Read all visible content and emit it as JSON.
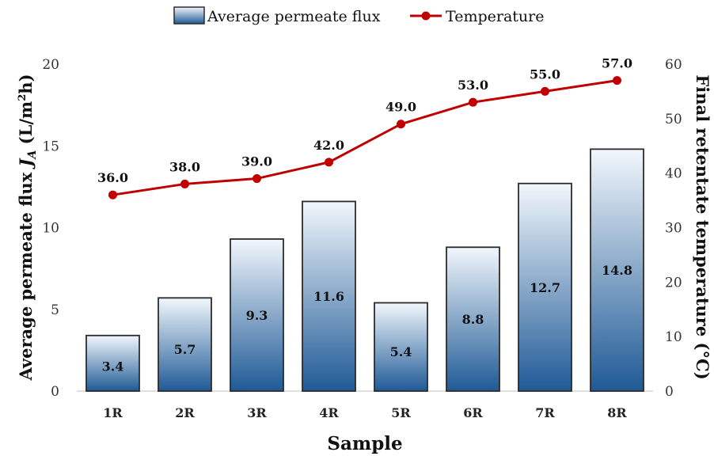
{
  "chart_data": {
    "type": "bar",
    "categories": [
      "1R",
      "2R",
      "3R",
      "4R",
      "5R",
      "6R",
      "7R",
      "8R"
    ],
    "series": [
      {
        "name": "Average permeate flux",
        "type": "bar",
        "axis": "left",
        "values": [
          3.4,
          5.7,
          9.3,
          11.6,
          5.4,
          8.8,
          12.7,
          14.8
        ],
        "data_labels": [
          "3.4",
          "5.7",
          "9.3",
          "11.6",
          "5.4",
          "8.8",
          "12.7",
          "14.8"
        ]
      },
      {
        "name": "Temperature",
        "type": "line",
        "axis": "right",
        "values": [
          36.0,
          38.0,
          39.0,
          42.0,
          49.0,
          53.0,
          55.0,
          57.0
        ],
        "data_labels": [
          "36.0",
          "38.0",
          "39.0",
          "42.0",
          "49.0",
          "53.0",
          "55.0",
          "57.0"
        ]
      }
    ],
    "xlabel": "Sample",
    "ylabel_left": {
      "main": "Average permeate flux ",
      "var": "J",
      "sub": "A",
      "unit_pre": " (L/m",
      "sup": "2",
      "unit_post": "h)"
    },
    "ylabel_right": "Final retentate temperature (°C)",
    "ylim_left": [
      0,
      20
    ],
    "yticks_left": [
      0,
      5,
      10,
      15,
      20
    ],
    "ylim_right": [
      0,
      60
    ],
    "yticks_right": [
      0,
      10,
      20,
      30,
      40,
      50,
      60
    ],
    "grid": false,
    "legend": "top-center",
    "colors": {
      "bar_top": "#f2f7fc",
      "bar_bottom": "#1f5a96",
      "bar_border": "#2b2b2b",
      "line": "#c00000",
      "marker": "#c00000"
    }
  }
}
